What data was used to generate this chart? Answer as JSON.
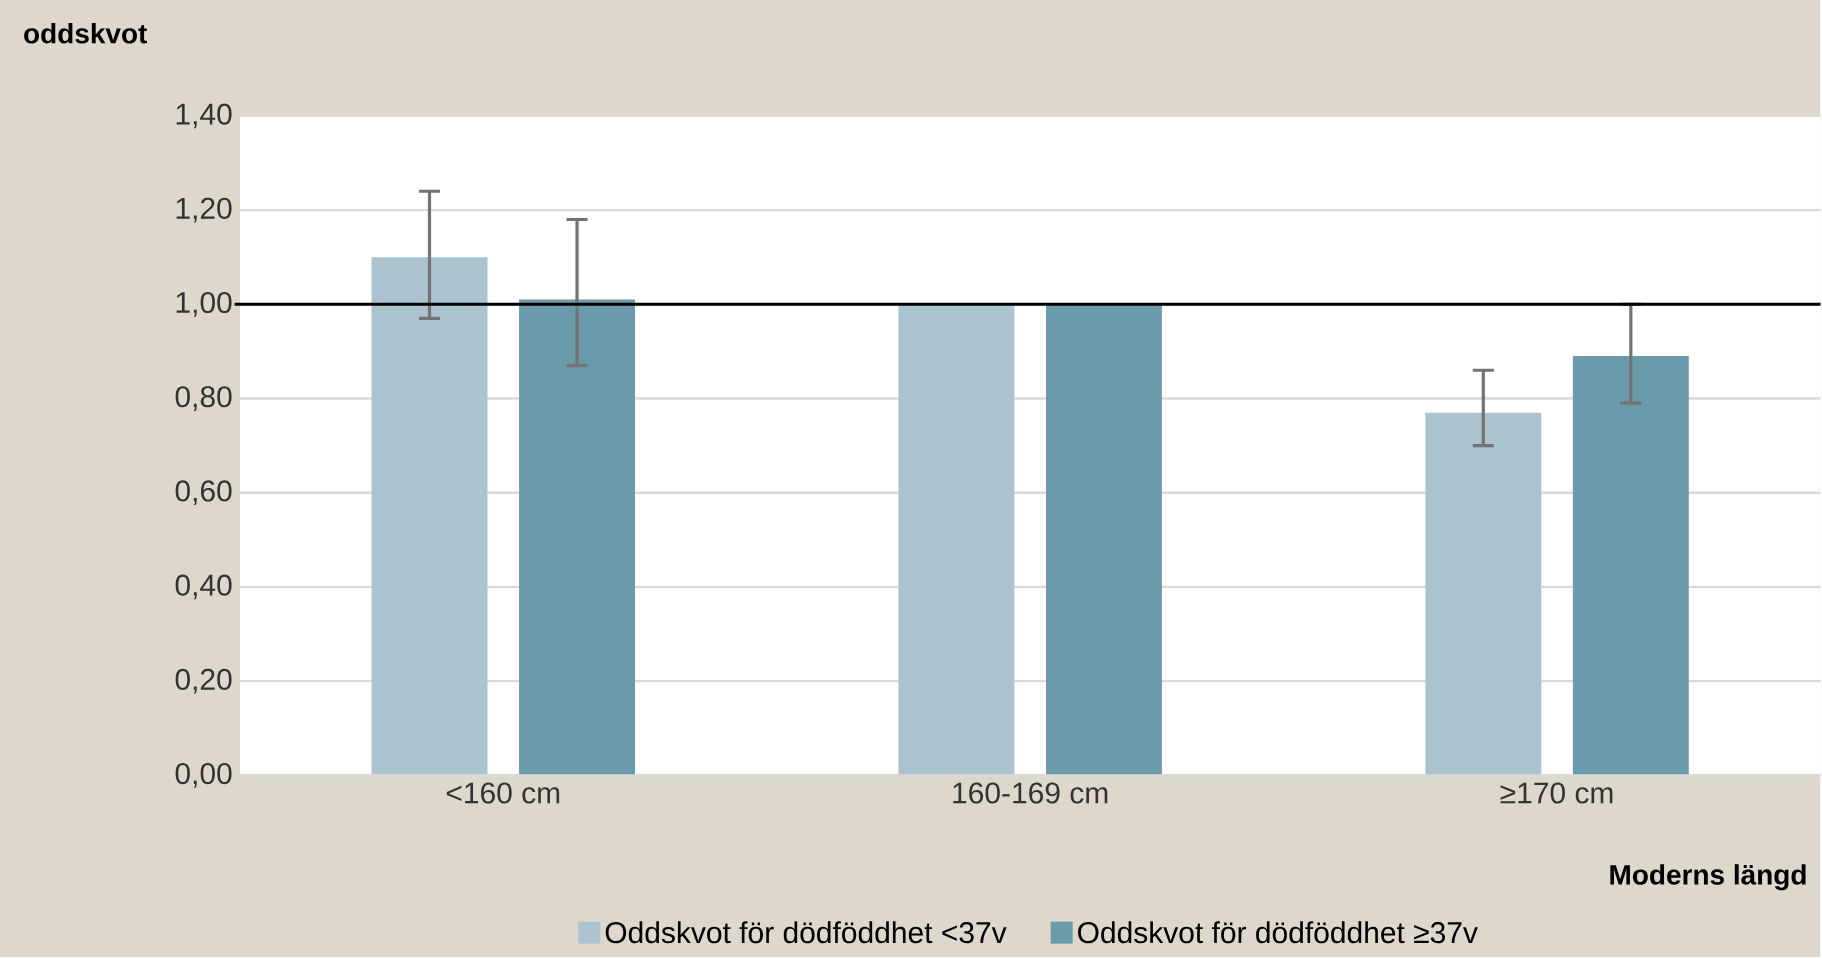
{
  "chart_data": {
    "type": "bar",
    "ylabel": "oddskvot",
    "xlabel": "Moderns längd",
    "categories": [
      "<160 cm",
      "160-169 cm",
      "≥170 cm"
    ],
    "series": [
      {
        "name": "Oddskvot för dödföddhet <37v",
        "color": "#abc3cf",
        "values": [
          1.1,
          1.0,
          0.77
        ],
        "errors": [
          [
            0.97,
            1.24
          ],
          null,
          [
            0.7,
            0.86
          ]
        ]
      },
      {
        "name": "Oddskvot för dödföddhet ≥37v",
        "color": "#6b9bab",
        "values": [
          1.01,
          1.0,
          0.89
        ],
        "errors": [
          [
            0.87,
            1.18
          ],
          null,
          [
            0.79,
            1.0
          ]
        ]
      }
    ],
    "ylim": [
      0,
      1.4
    ],
    "yticks": [
      {
        "value": 0,
        "label": "0,00"
      },
      {
        "value": 0.2,
        "label": "0,20"
      },
      {
        "value": 0.4,
        "label": "0,40"
      },
      {
        "value": 0.6,
        "label": "0,60"
      },
      {
        "value": 0.8,
        "label": "0,80"
      },
      {
        "value": 1.0,
        "label": "1,00"
      },
      {
        "value": 1.2,
        "label": "1,20"
      },
      {
        "value": 1.4,
        "label": "1,40"
      }
    ],
    "ref_lines": [
      {
        "axis": "y",
        "value": 1.0,
        "color": "#000000"
      }
    ],
    "grid": "y",
    "legend": "bottom"
  }
}
